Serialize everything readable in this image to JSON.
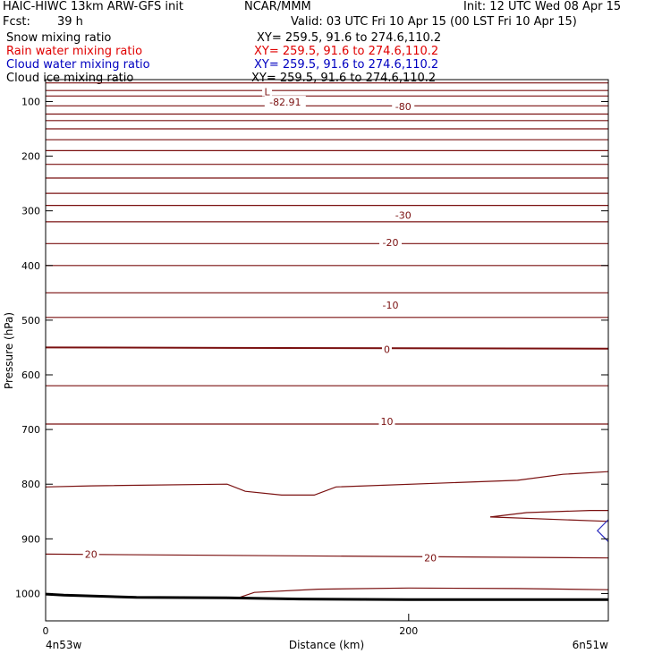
{
  "header": {
    "model": "HAIC-HIWC 13km ARW-GFS init",
    "org": "NCAR/MMM",
    "init": "Init: 12 UTC Wed 08 Apr 15",
    "fcst_label": "Fcst:",
    "fcst_value": "39 h",
    "valid": "Valid: 03 UTC Fri 10 Apr 15 (00 LST Fri 10 Apr 15)"
  },
  "fields": [
    {
      "label": "Snow mixing ratio",
      "xy": "XY= 259.5, 91.6 to 274.6,110.2",
      "color": "#000000"
    },
    {
      "label": "Rain water mixing ratio",
      "xy": "XY= 259.5, 91.6 to 274.6,110.2",
      "color": "#e00000"
    },
    {
      "label": "Cloud water mixing ratio",
      "xy": "XY= 259.5, 91.6 to 274.6,110.2",
      "color": "#0000c0"
    },
    {
      "label": "Cloud ice mixing ratio",
      "xy": "XY= 259.5, 91.6 to 274.6,110.2",
      "color": "#000000"
    }
  ],
  "chart_data": {
    "type": "line",
    "title": "",
    "xlabel": "Distance (km)",
    "ylabel": "Pressure (hPa)",
    "xlim": [
      0,
      310
    ],
    "ylim": [
      1050,
      60
    ],
    "x_ticks": [
      0,
      200
    ],
    "y_ticks": [
      100,
      200,
      300,
      400,
      500,
      600,
      700,
      800,
      900,
      1000
    ],
    "endpoint_labels": {
      "left": "4n53w",
      "right": "6n51w"
    },
    "contour_color": "#7a1010",
    "series": [
      {
        "x": [
          0,
          310
        ],
        "y": [
          66,
          66
        ]
      },
      {
        "x": [
          0,
          310
        ],
        "y": [
          80,
          80
        ]
      },
      {
        "x": [
          0,
          310
        ],
        "y": [
          90,
          90
        ]
      },
      {
        "x": [
          0,
          310
        ],
        "y": [
          108,
          108
        ]
      },
      {
        "x": [
          0,
          310
        ],
        "y": [
          123,
          123
        ]
      },
      {
        "x": [
          0,
          310
        ],
        "y": [
          135,
          135
        ]
      },
      {
        "x": [
          0,
          310
        ],
        "y": [
          150,
          150
        ]
      },
      {
        "x": [
          0,
          310
        ],
        "y": [
          170,
          170
        ]
      },
      {
        "x": [
          0,
          310
        ],
        "y": [
          190,
          190
        ]
      },
      {
        "x": [
          0,
          310
        ],
        "y": [
          215,
          215
        ]
      },
      {
        "x": [
          0,
          310
        ],
        "y": [
          240,
          240
        ]
      },
      {
        "x": [
          0,
          310
        ],
        "y": [
          268,
          268
        ]
      },
      {
        "x": [
          0,
          310
        ],
        "y": [
          290,
          290
        ]
      },
      {
        "x": [
          0,
          310
        ],
        "y": [
          320,
          320
        ]
      },
      {
        "x": [
          0,
          310
        ],
        "y": [
          360,
          360
        ]
      },
      {
        "x": [
          0,
          310
        ],
        "y": [
          400,
          400
        ]
      },
      {
        "x": [
          0,
          310
        ],
        "y": [
          450,
          450
        ]
      },
      {
        "x": [
          0,
          310
        ],
        "y": [
          495,
          495
        ]
      },
      {
        "x": [
          0,
          310
        ],
        "y": [
          550,
          552
        ]
      },
      {
        "x": [
          0,
          310
        ],
        "y": [
          620,
          620
        ]
      },
      {
        "x": [
          0,
          310
        ],
        "y": [
          690,
          690
        ]
      },
      {
        "x": [
          0,
          25,
          100,
          110,
          130,
          148,
          160,
          260,
          285,
          310
        ],
        "y": [
          805,
          803,
          800,
          813,
          820,
          820,
          805,
          793,
          782,
          777
        ]
      },
      {
        "x": [
          245,
          265,
          300,
          310
        ],
        "y": [
          860,
          852,
          848,
          848
        ]
      },
      {
        "x": [
          245,
          310
        ],
        "y": [
          860,
          868
        ]
      },
      {
        "x": [
          0,
          310
        ],
        "y": [
          928,
          935
        ]
      },
      {
        "x": [
          107,
          115,
          150,
          200,
          260,
          310
        ],
        "y": [
          1007,
          998,
          992,
          990,
          991,
          993
        ]
      },
      {
        "x": [
          0,
          10,
          50,
          100,
          140,
          200,
          310
        ],
        "y": [
          1001,
          1003,
          1007,
          1008,
          1010,
          1011,
          1011
        ]
      }
    ],
    "cloud_water_contour": {
      "x": [
        310,
        304,
        310
      ],
      "y": [
        865,
        885,
        905
      ],
      "color": "#3030c0"
    },
    "annotations": [
      {
        "text": "L",
        "x": 122,
        "y": 82
      },
      {
        "text": "-82.91",
        "x": 132,
        "y": 101
      },
      {
        "text": "-80",
        "x": 197,
        "y": 109
      },
      {
        "text": "-30",
        "x": 197,
        "y": 308
      },
      {
        "text": "-20",
        "x": 190,
        "y": 358
      },
      {
        "text": "-10",
        "x": 190,
        "y": 472
      },
      {
        "text": "0",
        "x": 188,
        "y": 553
      },
      {
        "text": "10",
        "x": 188,
        "y": 685
      },
      {
        "text": "20",
        "x": 25,
        "y": 928
      },
      {
        "text": "20",
        "x": 212,
        "y": 935
      }
    ]
  }
}
